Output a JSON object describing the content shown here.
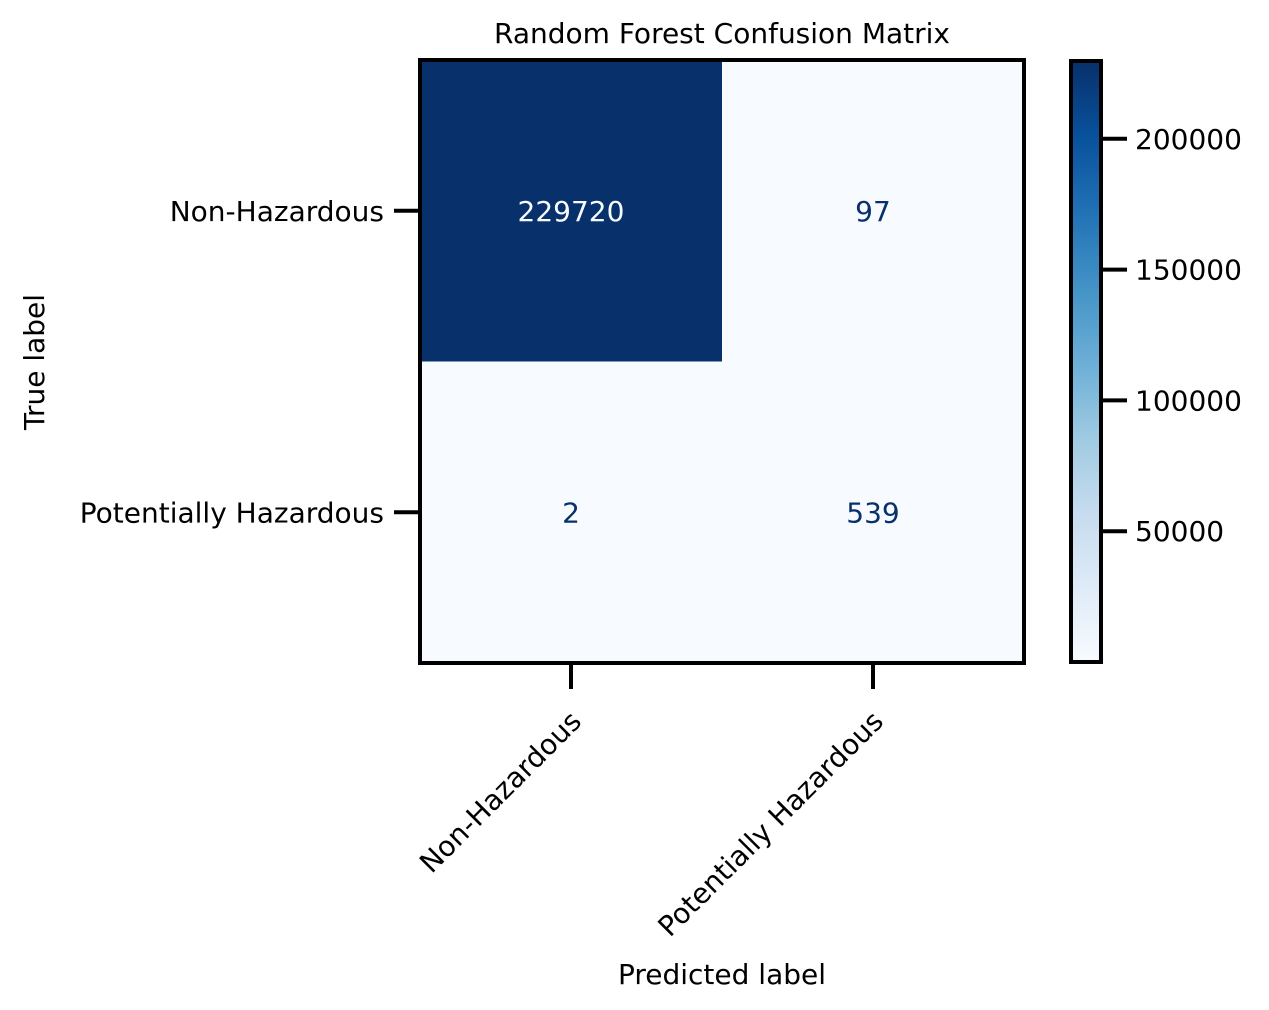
{
  "chart_data": {
    "type": "heatmap",
    "title": "Random Forest Confusion Matrix",
    "xlabel": "Predicted label",
    "ylabel": "True label",
    "x_categories": [
      "Non-Hazardous",
      "Potentially Hazardous"
    ],
    "y_categories": [
      "Non-Hazardous",
      "Potentially Hazardous"
    ],
    "matrix": [
      [
        229720,
        97
      ],
      [
        2,
        539
      ]
    ],
    "colormap": "Blues",
    "colorbar": {
      "min": 2,
      "max": 229720,
      "ticks": [
        50000,
        100000,
        150000,
        200000
      ],
      "tick_labels": [
        "50000",
        "100000",
        "150000",
        "200000"
      ]
    },
    "grid": false
  },
  "colors": {
    "dark_cell": "#08306b",
    "light_cell": "#f7fbff",
    "dark_text": "#08306b",
    "light_text": "#f7fbff"
  }
}
